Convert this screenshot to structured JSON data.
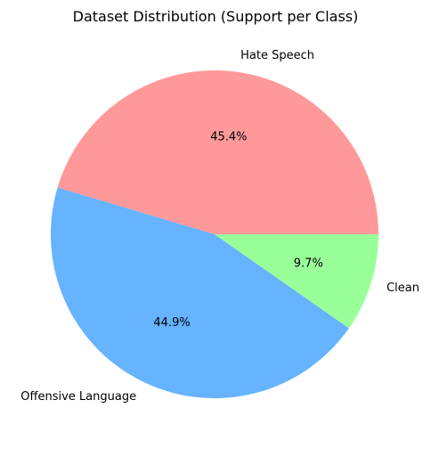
{
  "chart_data": {
    "type": "pie",
    "title": "Dataset Distribution (Support per Class)",
    "labels": [
      "Hate Speech",
      "Offensive Language",
      "Clean"
    ],
    "values": [
      45.4,
      44.9,
      9.7
    ],
    "value_labels": [
      "45.4%",
      "44.9%",
      "9.7%"
    ],
    "colors": [
      "#ff9999",
      "#66b3ff",
      "#99ff99"
    ],
    "start_angle_deg": 0,
    "direction": "counterclockwise"
  }
}
